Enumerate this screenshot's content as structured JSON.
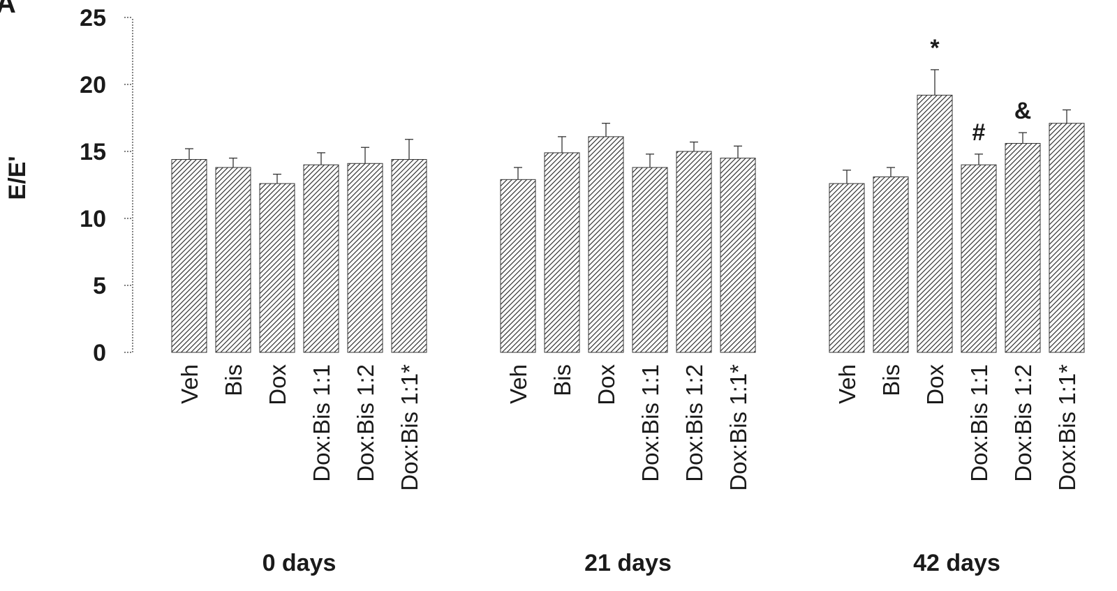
{
  "panel_label": "A",
  "chart_data": {
    "type": "bar",
    "ylabel": "E/E'",
    "ylim": [
      0,
      25
    ],
    "yticks": [
      0,
      5,
      10,
      15,
      20,
      25
    ],
    "grid": false,
    "categories": [
      "Veh",
      "Bis",
      "Dox",
      "Dox:Bis 1:1",
      "Dox:Bis 1:2",
      "Dox:Bis 1:1*"
    ],
    "groups": [
      {
        "name": "0 days",
        "values": [
          14.4,
          13.8,
          12.6,
          14.0,
          14.1,
          14.4
        ],
        "errors": [
          0.8,
          0.7,
          0.7,
          0.9,
          1.2,
          1.5
        ],
        "annotations": [
          "",
          "",
          "",
          "",
          "",
          ""
        ]
      },
      {
        "name": "21 days",
        "values": [
          12.9,
          14.9,
          16.1,
          13.8,
          15.0,
          14.5
        ],
        "errors": [
          0.9,
          1.2,
          1.0,
          1.0,
          0.7,
          0.9
        ],
        "annotations": [
          "",
          "",
          "",
          "",
          "",
          ""
        ]
      },
      {
        "name": "42 days",
        "values": [
          12.6,
          13.1,
          19.2,
          14.0,
          15.6,
          17.1
        ],
        "errors": [
          1.0,
          0.7,
          1.9,
          0.8,
          0.8,
          1.0
        ],
        "annotations": [
          "",
          "",
          "*",
          "#",
          "&",
          ""
        ]
      }
    ],
    "colors": {
      "bar_fill": "#ffffff",
      "bar_hatch": "#222222",
      "axis": "#333333"
    }
  }
}
